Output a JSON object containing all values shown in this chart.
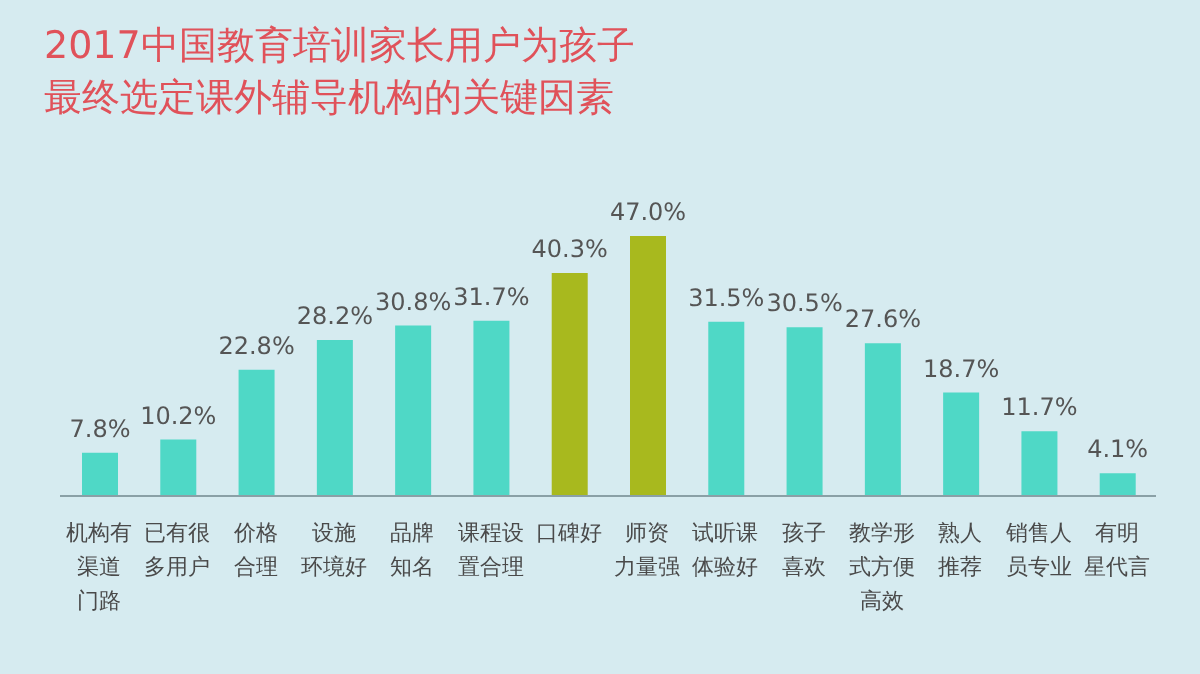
{
  "chart_data": {
    "type": "bar",
    "title": "2017中国教育培训家长用户为孩子最终选定课外辅导机构的关键因素",
    "categories": [
      "机构有渠道门路",
      "已有很多用户",
      "价格合理",
      "设施环境好",
      "品牌知名",
      "课程设置合理",
      "口碑好",
      "师资力量强",
      "试听课体验好",
      "孩子喜欢",
      "教学形式方便高效",
      "熟人推荐",
      "销售人员专业",
      "有明星代言"
    ],
    "values": [
      7.8,
      10.2,
      22.8,
      28.2,
      30.8,
      31.7,
      40.3,
      47.0,
      31.5,
      30.5,
      27.6,
      18.7,
      11.7,
      4.1
    ],
    "value_labels": [
      "7.8%",
      "10.2%",
      "22.8%",
      "28.2%",
      "30.8%",
      "31.7%",
      "40.3%",
      "47.0%",
      "31.5%",
      "30.5%",
      "27.6%",
      "18.7%",
      "11.7%",
      "4.1%"
    ],
    "colors": [
      "#4fd8c6",
      "#4fd8c6",
      "#4fd8c6",
      "#4fd8c6",
      "#4fd8c6",
      "#4fd8c6",
      "#a8b91e",
      "#a8b91e",
      "#4fd8c6",
      "#4fd8c6",
      "#4fd8c6",
      "#4fd8c6",
      "#4fd8c6",
      "#4fd8c6"
    ]
  }
}
